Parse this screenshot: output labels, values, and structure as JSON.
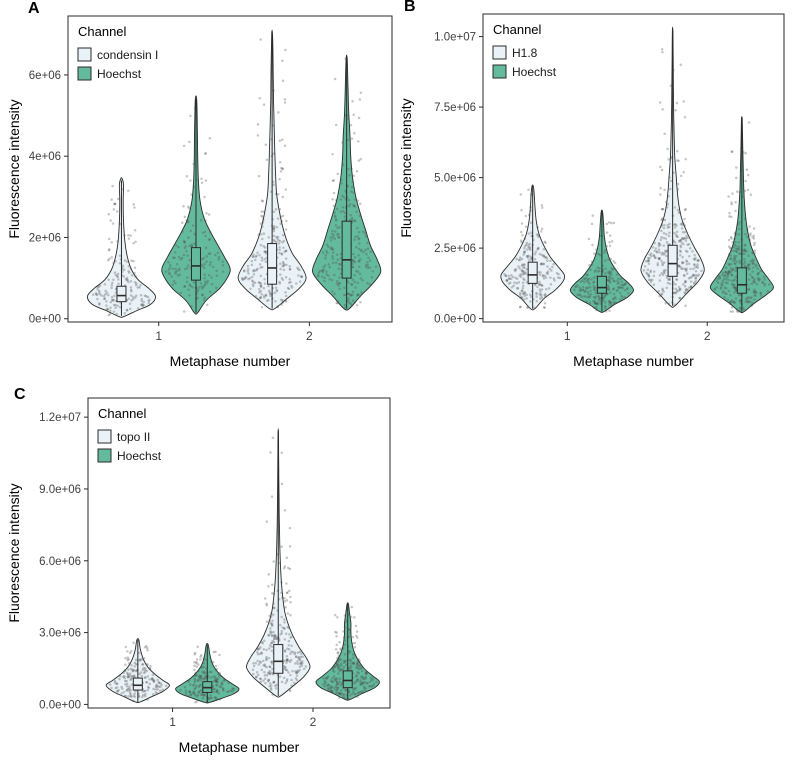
{
  "chart_data": [
    {
      "type": "violin",
      "panel_label": "A",
      "xlabel": "Metaphase number",
      "ylabel": "Fluorescence intensity",
      "categories": [
        "1",
        "2"
      ],
      "unit_multiplier": 1000000,
      "ylim": [
        -0.08,
        7.45
      ],
      "y_ticks": [
        {
          "value": 0,
          "label": "0e+00"
        },
        {
          "value": 2,
          "label": "2e+06"
        },
        {
          "value": 4,
          "label": "4e+06"
        },
        {
          "value": 6,
          "label": "6e+06"
        }
      ],
      "legend": {
        "title": "Channel",
        "entries": [
          {
            "label": "condensin I",
            "color": "#e9f2f6"
          },
          {
            "label": "Hoechst",
            "color": "#63ba9c"
          }
        ]
      },
      "violins": [
        {
          "group": "1",
          "channel": "condensin I",
          "group_index": 0,
          "channel_index": 0,
          "n_points": 170,
          "box": {
            "low": 0.07,
            "q1": 0.42,
            "median": 0.57,
            "q3": 0.8,
            "high": 3.4
          },
          "profile": [
            [
              0.05,
              0.06
            ],
            [
              0.2,
              0.45
            ],
            [
              0.35,
              0.85
            ],
            [
              0.55,
              1.0
            ],
            [
              0.75,
              0.8
            ],
            [
              0.95,
              0.5
            ],
            [
              1.2,
              0.3
            ],
            [
              1.5,
              0.18
            ],
            [
              1.9,
              0.1
            ],
            [
              2.4,
              0.06
            ],
            [
              2.9,
              0.05
            ],
            [
              3.3,
              0.06
            ],
            [
              3.45,
              0.02
            ]
          ]
        },
        {
          "group": "1",
          "channel": "Hoechst",
          "group_index": 0,
          "channel_index": 1,
          "n_points": 170,
          "box": {
            "low": 0.15,
            "q1": 0.95,
            "median": 1.3,
            "q3": 1.75,
            "high": 5.4
          },
          "profile": [
            [
              0.15,
              0.05
            ],
            [
              0.45,
              0.3
            ],
            [
              0.75,
              0.7
            ],
            [
              1.05,
              0.95
            ],
            [
              1.25,
              1.0
            ],
            [
              1.5,
              0.85
            ],
            [
              1.8,
              0.65
            ],
            [
              2.1,
              0.45
            ],
            [
              2.45,
              0.25
            ],
            [
              2.9,
              0.12
            ],
            [
              3.4,
              0.07
            ],
            [
              4.0,
              0.05
            ],
            [
              4.7,
              0.04
            ],
            [
              5.4,
              0.02
            ]
          ]
        },
        {
          "group": "2",
          "channel": "condensin I",
          "group_index": 1,
          "channel_index": 0,
          "n_points": 260,
          "box": {
            "low": 0.25,
            "q1": 0.85,
            "median": 1.25,
            "q3": 1.85,
            "high": 7.0
          },
          "profile": [
            [
              0.25,
              0.08
            ],
            [
              0.5,
              0.45
            ],
            [
              0.75,
              0.8
            ],
            [
              1.0,
              1.0
            ],
            [
              1.3,
              0.85
            ],
            [
              1.6,
              0.6
            ],
            [
              1.95,
              0.42
            ],
            [
              2.3,
              0.3
            ],
            [
              2.7,
              0.2
            ],
            [
              3.1,
              0.13
            ],
            [
              3.6,
              0.1
            ],
            [
              4.1,
              0.08
            ],
            [
              4.7,
              0.06
            ],
            [
              5.4,
              0.04
            ],
            [
              6.2,
              0.03
            ],
            [
              7.0,
              0.012
            ]
          ]
        },
        {
          "group": "2",
          "channel": "Hoechst",
          "group_index": 1,
          "channel_index": 1,
          "n_points": 260,
          "box": {
            "low": 0.25,
            "q1": 1.0,
            "median": 1.45,
            "q3": 2.4,
            "high": 6.4
          },
          "profile": [
            [
              0.25,
              0.08
            ],
            [
              0.55,
              0.4
            ],
            [
              0.85,
              0.75
            ],
            [
              1.15,
              1.0
            ],
            [
              1.45,
              0.9
            ],
            [
              1.8,
              0.7
            ],
            [
              2.2,
              0.55
            ],
            [
              2.6,
              0.4
            ],
            [
              3.0,
              0.27
            ],
            [
              3.5,
              0.17
            ],
            [
              4.0,
              0.12
            ],
            [
              4.5,
              0.1
            ],
            [
              5.1,
              0.06
            ],
            [
              5.7,
              0.04
            ],
            [
              6.4,
              0.015
            ]
          ]
        }
      ]
    },
    {
      "type": "violin",
      "panel_label": "B",
      "xlabel": "Metaphase number",
      "ylabel": "Fluorescence intensity",
      "categories": [
        "1",
        "2"
      ],
      "unit_multiplier": 1000000,
      "ylim": [
        -0.12,
        10.8
      ],
      "y_ticks": [
        {
          "value": 0,
          "label": "0.0e+00"
        },
        {
          "value": 2.5,
          "label": "2.5e+06"
        },
        {
          "value": 5,
          "label": "5.0e+06"
        },
        {
          "value": 7.5,
          "label": "7.5e+06"
        },
        {
          "value": 10,
          "label": "1.0e+07"
        }
      ],
      "legend": {
        "title": "Channel",
        "entries": [
          {
            "label": "H1.8",
            "color": "#e9f2f6"
          },
          {
            "label": "Hoechst",
            "color": "#63ba9c"
          }
        ]
      },
      "violins": [
        {
          "group": "1",
          "channel": "H1.8",
          "group_index": 0,
          "channel_index": 0,
          "n_points": 230,
          "box": {
            "low": 0.35,
            "q1": 1.25,
            "median": 1.55,
            "q3": 2.0,
            "high": 4.7
          },
          "profile": [
            [
              0.35,
              0.07
            ],
            [
              0.7,
              0.35
            ],
            [
              1.0,
              0.7
            ],
            [
              1.3,
              0.95
            ],
            [
              1.55,
              1.0
            ],
            [
              1.85,
              0.8
            ],
            [
              2.2,
              0.55
            ],
            [
              2.6,
              0.35
            ],
            [
              3.0,
              0.2
            ],
            [
              3.5,
              0.11
            ],
            [
              4.0,
              0.07
            ],
            [
              4.4,
              0.05
            ],
            [
              4.7,
              0.02
            ]
          ]
        },
        {
          "group": "1",
          "channel": "Hoechst",
          "group_index": 0,
          "channel_index": 1,
          "n_points": 230,
          "box": {
            "low": 0.25,
            "q1": 0.9,
            "median": 1.1,
            "q3": 1.5,
            "high": 3.8
          },
          "profile": [
            [
              0.25,
              0.07
            ],
            [
              0.5,
              0.4
            ],
            [
              0.75,
              0.8
            ],
            [
              1.0,
              1.0
            ],
            [
              1.25,
              0.85
            ],
            [
              1.5,
              0.6
            ],
            [
              1.8,
              0.4
            ],
            [
              2.1,
              0.25
            ],
            [
              2.5,
              0.14
            ],
            [
              2.9,
              0.08
            ],
            [
              3.4,
              0.05
            ],
            [
              3.8,
              0.02
            ]
          ]
        },
        {
          "group": "2",
          "channel": "H1.8",
          "group_index": 1,
          "channel_index": 0,
          "n_points": 320,
          "box": {
            "low": 0.45,
            "q1": 1.5,
            "median": 1.95,
            "q3": 2.6,
            "high": 10.2
          },
          "profile": [
            [
              0.45,
              0.07
            ],
            [
              0.9,
              0.45
            ],
            [
              1.3,
              0.8
            ],
            [
              1.7,
              1.0
            ],
            [
              2.1,
              0.9
            ],
            [
              2.5,
              0.7
            ],
            [
              3.0,
              0.48
            ],
            [
              3.5,
              0.3
            ],
            [
              4.0,
              0.2
            ],
            [
              4.6,
              0.14
            ],
            [
              5.1,
              0.11
            ],
            [
              5.7,
              0.07
            ],
            [
              6.4,
              0.05
            ],
            [
              7.2,
              0.035
            ],
            [
              8.1,
              0.025
            ],
            [
              9.1,
              0.018
            ],
            [
              10.2,
              0.008
            ]
          ]
        },
        {
          "group": "2",
          "channel": "Hoechst",
          "group_index": 1,
          "channel_index": 1,
          "n_points": 320,
          "box": {
            "low": 0.25,
            "q1": 0.9,
            "median": 1.2,
            "q3": 1.8,
            "high": 7.1
          },
          "profile": [
            [
              0.25,
              0.07
            ],
            [
              0.55,
              0.4
            ],
            [
              0.85,
              0.78
            ],
            [
              1.1,
              1.0
            ],
            [
              1.4,
              0.85
            ],
            [
              1.75,
              0.62
            ],
            [
              2.15,
              0.45
            ],
            [
              2.55,
              0.3
            ],
            [
              3.0,
              0.2
            ],
            [
              3.5,
              0.13
            ],
            [
              4.0,
              0.09
            ],
            [
              4.6,
              0.06
            ],
            [
              5.3,
              0.045
            ],
            [
              6.0,
              0.03
            ],
            [
              6.6,
              0.02
            ],
            [
              7.1,
              0.01
            ]
          ]
        }
      ]
    },
    {
      "type": "violin",
      "panel_label": "C",
      "xlabel": "Metaphase number",
      "ylabel": "Fluorescence intensity",
      "categories": [
        "1",
        "2"
      ],
      "unit_multiplier": 1000000,
      "ylim": [
        -0.15,
        12.8
      ],
      "y_ticks": [
        {
          "value": 0,
          "label": "0.0e+00"
        },
        {
          "value": 3,
          "label": "3.0e+06"
        },
        {
          "value": 6,
          "label": "6.0e+06"
        },
        {
          "value": 9,
          "label": "9.0e+06"
        },
        {
          "value": 12,
          "label": "1.2e+07"
        }
      ],
      "legend": {
        "title": "Channel",
        "entries": [
          {
            "label": "topo II",
            "color": "#e9f2f6"
          },
          {
            "label": "Hoechst",
            "color": "#63ba9c"
          }
        ]
      },
      "violins": [
        {
          "group": "1",
          "channel": "topo II",
          "group_index": 0,
          "channel_index": 0,
          "n_points": 180,
          "box": {
            "low": 0.1,
            "q1": 0.6,
            "median": 0.8,
            "q3": 1.1,
            "high": 2.7
          },
          "profile": [
            [
              0.1,
              0.07
            ],
            [
              0.3,
              0.4
            ],
            [
              0.55,
              0.8
            ],
            [
              0.8,
              1.0
            ],
            [
              1.0,
              0.8
            ],
            [
              1.25,
              0.55
            ],
            [
              1.55,
              0.32
            ],
            [
              1.9,
              0.17
            ],
            [
              2.3,
              0.08
            ],
            [
              2.7,
              0.03
            ]
          ]
        },
        {
          "group": "1",
          "channel": "Hoechst",
          "group_index": 0,
          "channel_index": 1,
          "n_points": 180,
          "box": {
            "low": 0.08,
            "q1": 0.5,
            "median": 0.7,
            "q3": 0.95,
            "high": 2.5
          },
          "profile": [
            [
              0.08,
              0.07
            ],
            [
              0.25,
              0.45
            ],
            [
              0.45,
              0.85
            ],
            [
              0.65,
              1.0
            ],
            [
              0.85,
              0.8
            ],
            [
              1.1,
              0.52
            ],
            [
              1.4,
              0.3
            ],
            [
              1.7,
              0.16
            ],
            [
              2.1,
              0.08
            ],
            [
              2.5,
              0.03
            ]
          ]
        },
        {
          "group": "2",
          "channel": "topo II",
          "group_index": 1,
          "channel_index": 0,
          "n_points": 270,
          "box": {
            "low": 0.35,
            "q1": 1.3,
            "median": 1.8,
            "q3": 2.5,
            "high": 11.4
          },
          "profile": [
            [
              0.35,
              0.07
            ],
            [
              0.75,
              0.45
            ],
            [
              1.15,
              0.8
            ],
            [
              1.55,
              1.0
            ],
            [
              1.95,
              0.88
            ],
            [
              2.4,
              0.65
            ],
            [
              2.9,
              0.45
            ],
            [
              3.4,
              0.3
            ],
            [
              3.9,
              0.2
            ],
            [
              4.5,
              0.14
            ],
            [
              5.1,
              0.1
            ],
            [
              5.8,
              0.07
            ],
            [
              6.6,
              0.05
            ],
            [
              7.5,
              0.035
            ],
            [
              8.5,
              0.025
            ],
            [
              9.5,
              0.018
            ],
            [
              10.5,
              0.012
            ],
            [
              11.4,
              0.005
            ]
          ]
        },
        {
          "group": "2",
          "channel": "Hoechst",
          "group_index": 1,
          "channel_index": 1,
          "n_points": 270,
          "box": {
            "low": 0.2,
            "q1": 0.7,
            "median": 1.0,
            "q3": 1.4,
            "high": 4.2
          },
          "profile": [
            [
              0.2,
              0.07
            ],
            [
              0.45,
              0.45
            ],
            [
              0.7,
              0.85
            ],
            [
              0.95,
              1.0
            ],
            [
              1.2,
              0.78
            ],
            [
              1.5,
              0.52
            ],
            [
              1.85,
              0.33
            ],
            [
              2.2,
              0.2
            ],
            [
              2.6,
              0.13
            ],
            [
              3.0,
              0.1
            ],
            [
              3.4,
              0.1
            ],
            [
              3.8,
              0.06
            ],
            [
              4.2,
              0.02
            ]
          ]
        }
      ]
    }
  ],
  "style": {
    "outline_color": "#2b2b2b",
    "tick_label_color": "#404040",
    "axis_title_color": "#000000",
    "point_color": "#4d4d4d"
  }
}
